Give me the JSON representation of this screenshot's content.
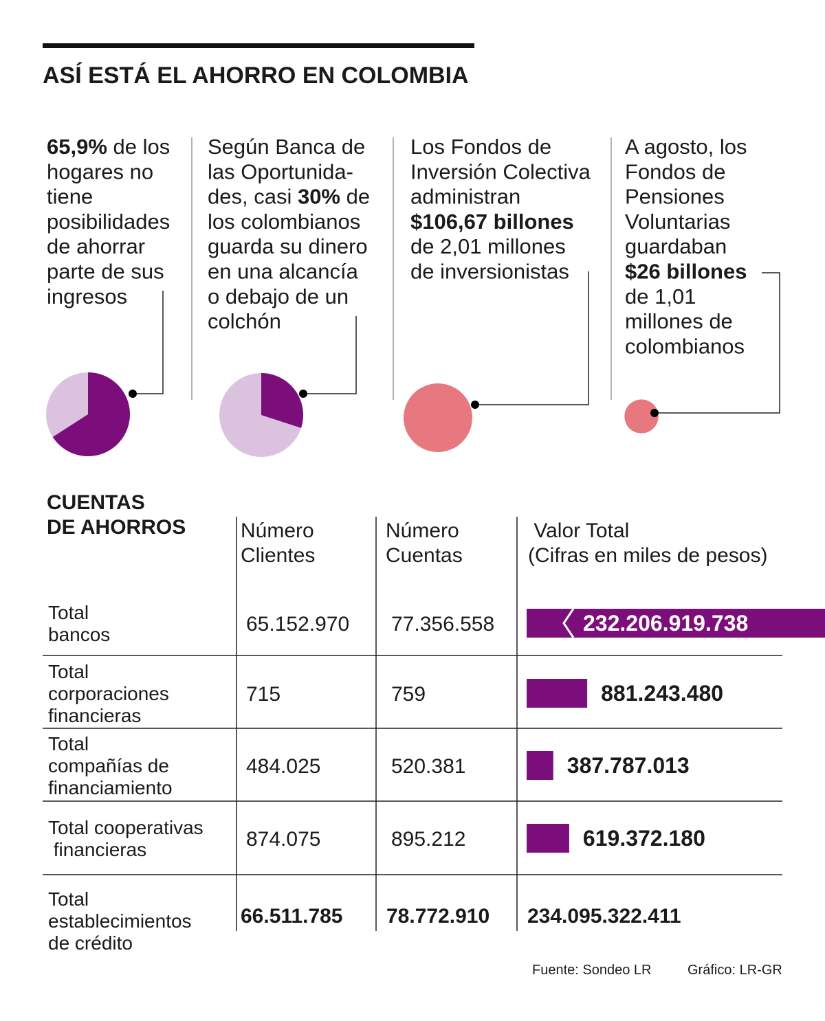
{
  "header": {
    "title": "ASÍ ESTÁ EL AHORRO EN COLOMBIA"
  },
  "blocks": [
    {
      "lines": [
        [
          {
            "text": "65,9%",
            "bold": true
          },
          {
            "text": " de los"
          }
        ],
        "hogares no",
        "tiene",
        "posibilidades",
        "de ahorrar",
        "parte de sus",
        "ingresos"
      ],
      "share": 65.9
    },
    {
      "lines": [
        "Según Banca de",
        "las Oportunida-",
        [
          {
            "text": "des, casi "
          },
          {
            "text": "30%",
            "bold": true
          },
          {
            "text": " de"
          }
        ],
        "los colombianos",
        "guarda su dinero",
        "en una alcancía",
        "o debajo de un",
        "colchón"
      ],
      "share": 30
    },
    {
      "lines": [
        "Los Fondos de",
        "Inversión Colectiva",
        "administran",
        [
          {
            "text": "$106,67 billones",
            "bold": true
          }
        ],
        "de 2,01 millones",
        "de inversionistas"
      ],
      "amount": 106.67
    },
    {
      "lines": [
        "A agosto, los",
        "Fondos de",
        "Pensiones",
        "Voluntarias",
        "guardaban",
        [
          {
            "text": "$26 billones",
            "bold": true
          }
        ],
        "de 1,01",
        "millones de",
        "colombianos"
      ],
      "amount": 26
    }
  ],
  "table": {
    "title_lines": [
      "CUENTAS",
      "DE AHORROS"
    ],
    "columns": [
      [
        "Número",
        "Clientes"
      ],
      [
        "Número",
        "Cuentas"
      ],
      [
        " Valor Total",
        "(Cifras en miles de pesos)"
      ]
    ],
    "rows": [
      {
        "label": [
          "Total",
          "bancos"
        ],
        "clients": "65.152.970",
        "accounts": "77.356.558",
        "value": 232206919738,
        "value_label": "232.206.919.738"
      },
      {
        "label": [
          "Total",
          "corporaciones",
          "financieras"
        ],
        "clients": "715",
        "accounts": "759",
        "value": 881243480,
        "value_label": "881.243.480"
      },
      {
        "label": [
          "Total",
          "compañías de",
          "financiamiento"
        ],
        "clients": "484.025",
        "accounts": "520.381",
        "value": 387787013,
        "value_label": "387.787.013"
      },
      {
        "label": [
          "Total cooperativas",
          " financieras"
        ],
        "clients": "874.075",
        "accounts": "895.212",
        "value": 619372180,
        "value_label": "619.372.180"
      }
    ],
    "total": {
      "label": [
        "Total",
        "establecimientos",
        "de crédito"
      ],
      "clients": "66.511.785",
      "accounts": "78.772.910",
      "value": "234.095.322.411"
    }
  },
  "footer": {
    "source": "Fuente: Sondeo LR",
    "credit": "Gráfico: LR-GR"
  }
}
